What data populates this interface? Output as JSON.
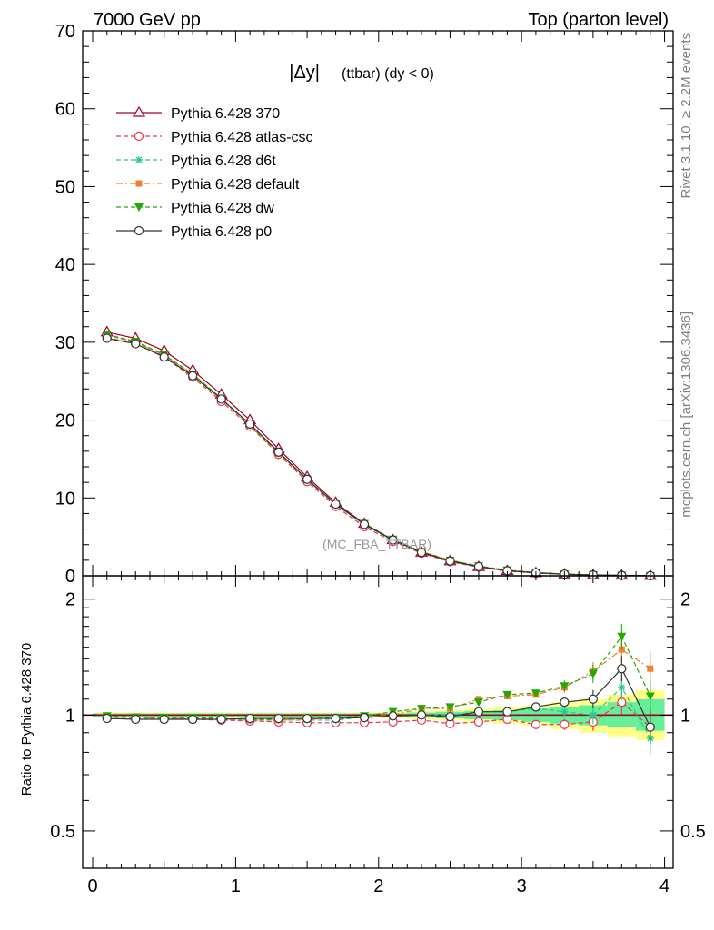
{
  "header": {
    "left": "7000 GeV pp",
    "right": "Top (parton level)"
  },
  "side": {
    "rivet": "Rivet 3.1.10, ≥ 2.2M events",
    "mcplots": "mcplots.cern.ch [arXiv:1306.3436]"
  },
  "plot_title": {
    "main": "|Δy|",
    "sub": "(ttbar) (dy < 0)"
  },
  "analysis_tag": "(MC_FBA_TTBAR)",
  "ratio_ylabel": "Ratio to Pythia 6.428 370",
  "chart_data": [
    {
      "type": "line",
      "panel": "main",
      "ylim": [
        0,
        70
      ],
      "xlim": [
        -0.07,
        4.06
      ],
      "yticks": [
        0,
        10,
        20,
        30,
        40,
        50,
        60,
        70
      ],
      "xticks": [
        0,
        1,
        2,
        3,
        4
      ],
      "legend_position": "top-left",
      "x": [
        0.1,
        0.3,
        0.5,
        0.7,
        0.9,
        1.1,
        1.3,
        1.5,
        1.7,
        1.9,
        2.1,
        2.3,
        2.5,
        2.7,
        2.9,
        3.1,
        3.3,
        3.5,
        3.7,
        3.9
      ],
      "series": [
        {
          "name": "Pythia 6.428 370",
          "color": "#a0002a",
          "marker": "triangle-open",
          "dash": "solid",
          "values": [
            31.3,
            30.5,
            28.9,
            26.4,
            23.3,
            20.0,
            16.3,
            12.7,
            9.4,
            6.7,
            4.6,
            3.0,
            1.9,
            1.15,
            0.65,
            0.37,
            0.2,
            0.1,
            0.05,
            0.02
          ]
        },
        {
          "name": "Pythia 6.428 atlas-csc",
          "color": "#ee3355",
          "marker": "circle-open",
          "dash": "dashed",
          "values": [
            30.6,
            29.8,
            28.1,
            25.5,
            22.4,
            19.2,
            15.6,
            12.1,
            8.9,
            6.3,
            4.4,
            2.9,
            1.8,
            1.1,
            0.6,
            0.35,
            0.19,
            0.1,
            0.05,
            0.02
          ]
        },
        {
          "name": "Pythia 6.428 d6t",
          "color": "#22cc88",
          "marker": "star",
          "dash": "dashed",
          "values": [
            30.9,
            30.0,
            28.3,
            25.9,
            22.8,
            19.3,
            15.8,
            12.3,
            9.1,
            6.6,
            4.5,
            3.1,
            1.9,
            1.15,
            0.65,
            0.38,
            0.2,
            0.12,
            0.06,
            0.02
          ]
        },
        {
          "name": "Pythia 6.428 default",
          "color": "#f08030",
          "marker": "square",
          "dash": "dashdot",
          "values": [
            30.9,
            30.0,
            28.3,
            25.9,
            22.7,
            19.3,
            15.7,
            12.3,
            9.2,
            6.6,
            4.6,
            3.1,
            2.0,
            1.25,
            0.72,
            0.41,
            0.24,
            0.13,
            0.07,
            0.03
          ]
        },
        {
          "name": "Pythia 6.428 dw",
          "color": "#22aa00",
          "marker": "triangle-down",
          "dash": "dashed",
          "values": [
            31.0,
            30.1,
            28.4,
            25.9,
            22.8,
            19.4,
            15.8,
            12.4,
            9.2,
            6.7,
            4.7,
            3.1,
            2.0,
            1.25,
            0.73,
            0.42,
            0.24,
            0.13,
            0.08,
            0.02
          ]
        },
        {
          "name": "Pythia 6.428 p0",
          "color": "#333333",
          "marker": "circle-open",
          "dash": "solid",
          "values": [
            30.5,
            29.8,
            28.1,
            25.7,
            22.7,
            19.5,
            15.9,
            12.4,
            9.2,
            6.6,
            4.6,
            3.0,
            1.9,
            1.18,
            0.66,
            0.39,
            0.21,
            0.11,
            0.06,
            0.02
          ]
        }
      ]
    },
    {
      "type": "line",
      "panel": "ratio",
      "ylabel": "Ratio to Pythia 6.428 370",
      "yscale": "log",
      "ylim": [
        0.4,
        2.3
      ],
      "xlim": [
        -0.07,
        4.06
      ],
      "yticks": [
        0.5,
        1,
        2
      ],
      "ytick_labels": [
        "0.5",
        "1",
        "2"
      ],
      "xticks": [
        0,
        1,
        2,
        3,
        4
      ],
      "xtick_labels": [
        "0",
        "1",
        "2",
        "3",
        "4"
      ],
      "x": [
        0.1,
        0.3,
        0.5,
        0.7,
        0.9,
        1.1,
        1.3,
        1.5,
        1.7,
        1.9,
        2.1,
        2.3,
        2.5,
        2.7,
        2.9,
        3.1,
        3.3,
        3.5,
        3.7,
        3.9
      ],
      "band": {
        "green": [
          [
            0.99,
            1.01
          ],
          [
            0.99,
            1.01
          ],
          [
            0.99,
            1.01
          ],
          [
            0.99,
            1.01
          ],
          [
            0.99,
            1.01
          ],
          [
            0.99,
            1.01
          ],
          [
            0.99,
            1.01
          ],
          [
            0.99,
            1.01
          ],
          [
            0.99,
            1.01
          ],
          [
            0.99,
            1.01
          ],
          [
            0.99,
            1.01
          ],
          [
            0.985,
            1.015
          ],
          [
            0.98,
            1.02
          ],
          [
            0.975,
            1.025
          ],
          [
            0.97,
            1.03
          ],
          [
            0.96,
            1.04
          ],
          [
            0.95,
            1.05
          ],
          [
            0.94,
            1.06
          ],
          [
            0.93,
            1.08
          ],
          [
            0.91,
            1.1
          ]
        ],
        "yellow": [
          [
            0.985,
            1.015
          ],
          [
            0.985,
            1.015
          ],
          [
            0.985,
            1.015
          ],
          [
            0.985,
            1.015
          ],
          [
            0.985,
            1.015
          ],
          [
            0.985,
            1.015
          ],
          [
            0.985,
            1.015
          ],
          [
            0.985,
            1.015
          ],
          [
            0.985,
            1.015
          ],
          [
            0.985,
            1.015
          ],
          [
            0.98,
            1.02
          ],
          [
            0.975,
            1.025
          ],
          [
            0.97,
            1.03
          ],
          [
            0.96,
            1.04
          ],
          [
            0.95,
            1.05
          ],
          [
            0.94,
            1.06
          ],
          [
            0.92,
            1.08
          ],
          [
            0.9,
            1.1
          ],
          [
            0.88,
            1.13
          ],
          [
            0.86,
            1.16
          ]
        ]
      },
      "series": [
        {
          "name": "Pythia 6.428 atlas-csc",
          "values": [
            0.98,
            0.977,
            0.975,
            0.975,
            0.97,
            0.965,
            0.96,
            0.955,
            0.955,
            0.955,
            0.96,
            0.97,
            0.95,
            0.96,
            0.975,
            0.945,
            0.945,
            0.96,
            1.08,
            0.93
          ]
        },
        {
          "name": "Pythia 6.428 d6t",
          "values": [
            0.99,
            0.985,
            0.98,
            0.98,
            0.975,
            0.97,
            0.97,
            0.97,
            0.97,
            0.99,
            0.99,
            1.0,
            1.0,
            1.02,
            1.02,
            1.04,
            1.02,
            1.0,
            1.18,
            0.87
          ]
        },
        {
          "name": "Pythia 6.428 default",
          "values": [
            0.99,
            0.985,
            0.98,
            0.98,
            0.975,
            0.97,
            0.97,
            0.975,
            0.98,
            0.99,
            1.0,
            1.04,
            1.04,
            1.1,
            1.12,
            1.13,
            1.18,
            1.3,
            1.48,
            1.32
          ]
        },
        {
          "name": "Pythia 6.428 dw",
          "values": [
            0.995,
            0.988,
            0.985,
            0.985,
            0.98,
            0.975,
            0.975,
            0.98,
            0.985,
            0.995,
            1.02,
            1.04,
            1.05,
            1.08,
            1.13,
            1.14,
            1.19,
            1.28,
            1.6,
            1.12
          ]
        },
        {
          "name": "Pythia 6.428 p0",
          "values": [
            0.98,
            0.975,
            0.975,
            0.975,
            0.975,
            0.98,
            0.98,
            0.98,
            0.98,
            0.985,
            0.995,
            1.0,
            0.99,
            1.02,
            1.02,
            1.05,
            1.08,
            1.1,
            1.32,
            0.93
          ]
        }
      ]
    }
  ]
}
